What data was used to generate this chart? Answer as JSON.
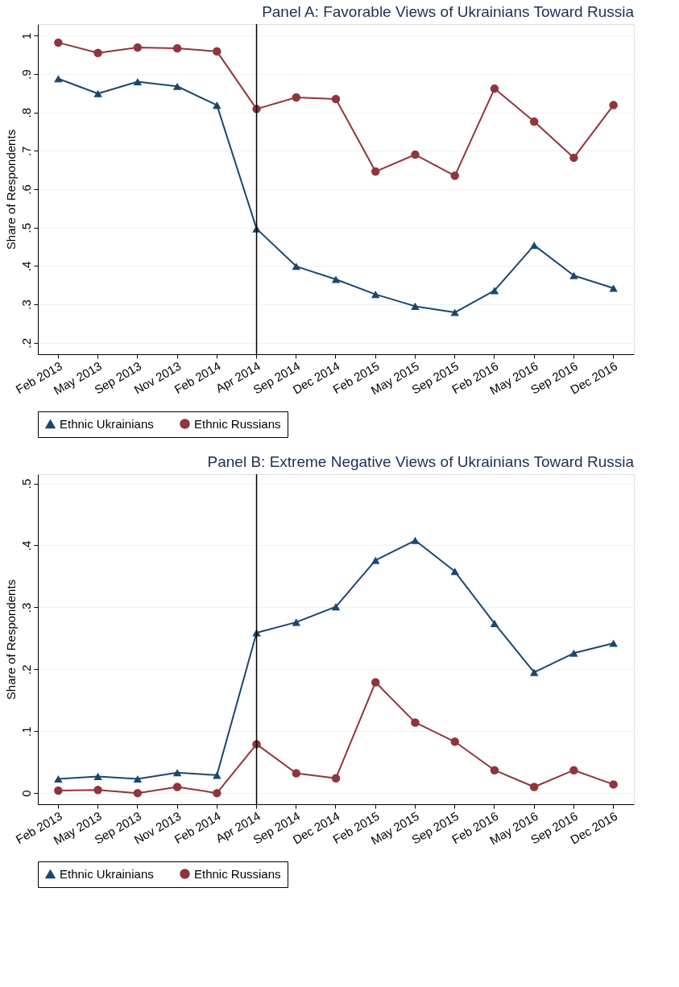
{
  "chart_data": [
    {
      "type": "line",
      "title": "Panel A: Favorable Views of Ukrainians Toward Russia",
      "ylabel": "Share of Respondents",
      "categories": [
        "Feb 2013",
        "May 2013",
        "Sep 2013",
        "Nov 2013",
        "Feb 2014",
        "Apr 2014",
        "Sep 2014",
        "Dec 2014",
        "Feb 2015",
        "May 2015",
        "Sep 2015",
        "Feb 2016",
        "May 2016",
        "Sep 2016",
        "Dec 2016"
      ],
      "series": [
        {
          "name": "Ethnic Ukrainians",
          "color": "#1a476f",
          "marker": "triangle",
          "values": [
            0.888,
            0.849,
            0.88,
            0.868,
            0.819,
            0.497,
            0.399,
            0.365,
            0.326,
            0.295,
            0.279,
            0.336,
            0.454,
            0.375,
            0.342
          ]
        },
        {
          "name": "Ethnic Russians",
          "color": "#90353b",
          "marker": "circle",
          "values": [
            0.982,
            0.955,
            0.969,
            0.967,
            0.959,
            0.809,
            0.839,
            0.835,
            0.646,
            0.69,
            0.635,
            0.862,
            0.776,
            0.682,
            0.819
          ]
        }
      ],
      "ylim": [
        0.17,
        1.03
      ],
      "yticks": [
        {
          "value": 0.2,
          "label": ".2"
        },
        {
          "value": 0.3,
          "label": ".3"
        },
        {
          "value": 0.4,
          "label": ".4"
        },
        {
          "value": 0.5,
          "label": ".5"
        },
        {
          "value": 0.6,
          "label": ".6"
        },
        {
          "value": 0.7,
          "label": ".7"
        },
        {
          "value": 0.8,
          "label": ".8"
        },
        {
          "value": 0.9,
          "label": ".9"
        },
        1
      ],
      "ref_lines": [
        {
          "axis": "x",
          "value": "Apr 2014",
          "color": "#000000"
        }
      ],
      "grid": "y",
      "legend": "bottom"
    },
    {
      "type": "line",
      "title": "Panel B: Extreme Negative Views of Ukrainians Toward Russia",
      "ylabel": "Share of Respondents",
      "categories": [
        "Feb 2013",
        "May 2013",
        "Sep 2013",
        "Nov 2013",
        "Feb 2014",
        "Apr 2014",
        "Sep 2014",
        "Dec 2014",
        "Feb 2015",
        "May 2015",
        "Sep 2015",
        "Feb 2016",
        "May 2016",
        "Sep 2016",
        "Dec 2016"
      ],
      "series": [
        {
          "name": "Ethnic Ukrainians",
          "color": "#1a476f",
          "marker": "triangle",
          "values": [
            0.023,
            0.027,
            0.023,
            0.033,
            0.029,
            0.259,
            0.276,
            0.301,
            0.376,
            0.408,
            0.358,
            0.274,
            0.195,
            0.226,
            0.242
          ]
        },
        {
          "name": "Ethnic Russians",
          "color": "#90353b",
          "marker": "circle",
          "values": [
            0.004,
            0.005,
            0.0,
            0.01,
            0.0,
            0.079,
            0.032,
            0.024,
            0.179,
            0.114,
            0.083,
            0.037,
            0.01,
            0.037,
            0.014
          ]
        }
      ],
      "ylim": [
        -0.018,
        0.515
      ],
      "yticks": [
        0,
        {
          "value": 0.1,
          "label": ".1"
        },
        {
          "value": 0.2,
          "label": ".2"
        },
        {
          "value": 0.3,
          "label": ".3"
        },
        {
          "value": 0.4,
          "label": ".4"
        },
        {
          "value": 0.5,
          "label": ".5"
        }
      ],
      "ref_lines": [
        {
          "axis": "x",
          "value": "Apr 2014",
          "color": "#000000"
        }
      ],
      "grid": "y",
      "legend": "bottom"
    }
  ]
}
